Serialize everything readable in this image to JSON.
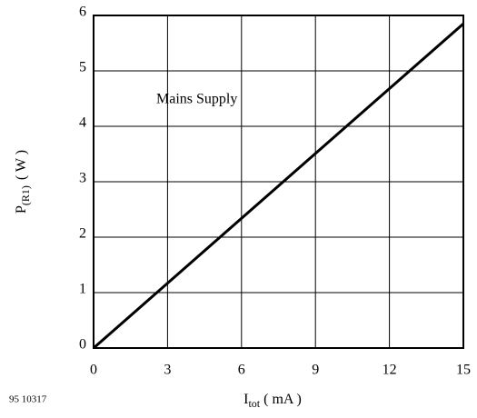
{
  "chart_data": {
    "type": "line",
    "xlabel": {
      "main": "I",
      "sub": "tot",
      "unit": "( mA )"
    },
    "ylabel": {
      "main": "P",
      "sub": "(R1)",
      "unit": "( W )"
    },
    "annotation": "Mains Supply",
    "figure_id": "95 10317",
    "x": [
      0,
      15
    ],
    "series": [
      {
        "name": "Mains Supply",
        "color": "#000000",
        "values": [
          0,
          5.85
        ]
      }
    ],
    "xlim": [
      0,
      15
    ],
    "xticks": [
      0,
      3,
      6,
      9,
      12,
      15
    ],
    "ylim": [
      0,
      6
    ],
    "yticks": [
      0,
      1,
      2,
      3,
      4,
      5,
      6
    ],
    "grid": true
  }
}
